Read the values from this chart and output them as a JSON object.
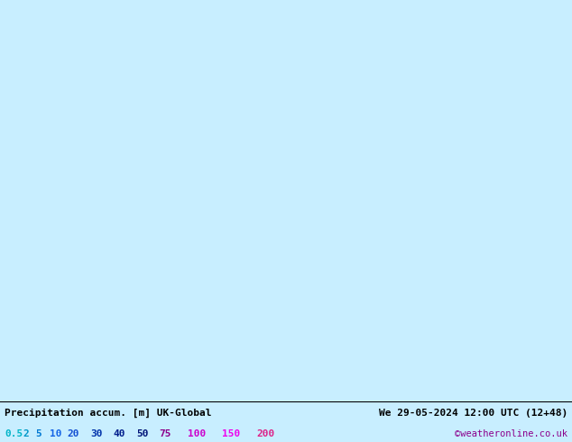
{
  "title_left": "Precipitation accum. [m] UK-Global",
  "title_right": "We 29-05-2024 12:00 UTC (12+48)",
  "credit": "©weatheronline.co.uk",
  "legend_values": [
    "0.5",
    "2",
    "5",
    "10",
    "20",
    "30",
    "40",
    "50",
    "75",
    "100",
    "150",
    "200"
  ],
  "legend_text_colors": [
    "#00b4c8",
    "#0096c8",
    "#0078d2",
    "#1464e6",
    "#1450d2",
    "#0032aa",
    "#001e8c",
    "#001478",
    "#8b008b",
    "#cc00cc",
    "#ee00ee",
    "#dd2288"
  ],
  "ocean_color": "#c8eeff",
  "land_color": "#c8e8a0",
  "bg_color": "#c8eeff",
  "bottom_bg": "#d0e8e8",
  "precip_colors": {
    "p05": "#aaeeff",
    "p2": "#88ddff",
    "p5": "#55bbff",
    "p10": "#2299ee",
    "p20": "#1166dd",
    "p30": "#0044cc",
    "p40": "#0033aa",
    "p50": "#002288",
    "p75": "#660088",
    "p100": "#aa00aa",
    "p150": "#ee00ee",
    "p200": "#ff44bb"
  },
  "fig_width": 6.34,
  "fig_height": 4.9,
  "dpi": 100,
  "lon_min": -25,
  "lon_max": 45,
  "lat_min": 35,
  "lat_max": 75
}
